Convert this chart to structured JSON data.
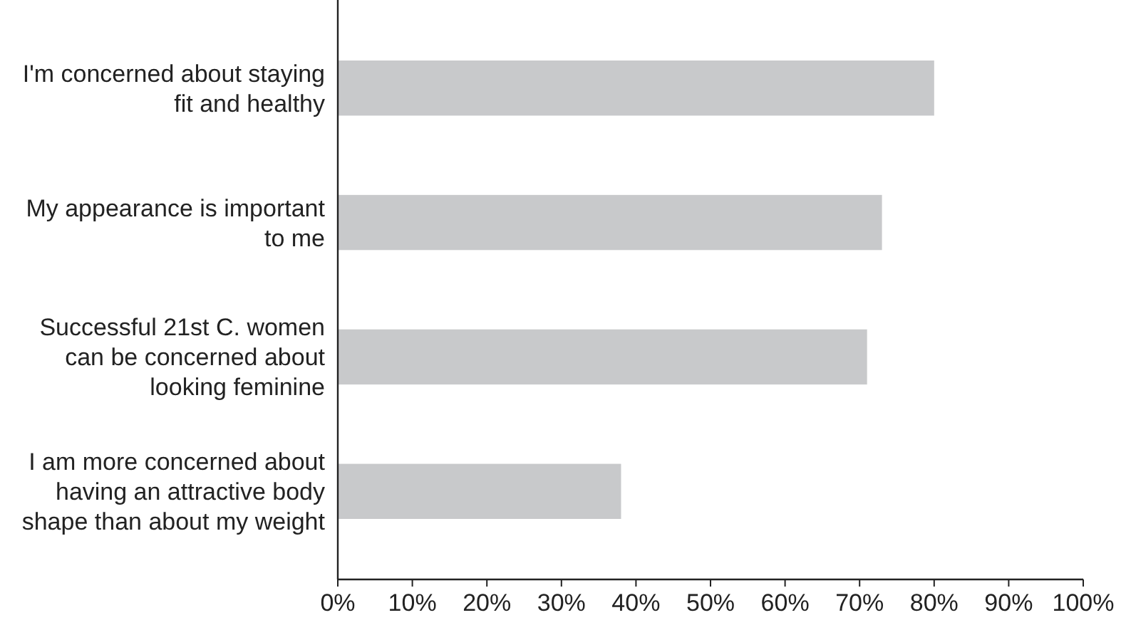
{
  "chart_data": {
    "type": "bar",
    "orientation": "horizontal",
    "categories": [
      "I'm concerned about staying fit and healthy",
      "My appearance is important to me",
      "Successful 21st C. women can be concerned about looking feminine",
      "I am more concerned about having an attractive body shape than about my weight"
    ],
    "values": [
      80,
      73,
      71,
      38
    ],
    "color": "#c8c9cb",
    "xlim": [
      0,
      100
    ],
    "xticks": [
      {
        "value": 0,
        "label": "0%"
      },
      {
        "value": 10,
        "label": "10%"
      },
      {
        "value": 20,
        "label": "20%"
      },
      {
        "value": 30,
        "label": "30%"
      },
      {
        "value": 40,
        "label": "40%"
      },
      {
        "value": 50,
        "label": "50%"
      },
      {
        "value": 60,
        "label": "60%"
      },
      {
        "value": 70,
        "label": "70%"
      },
      {
        "value": 80,
        "label": "80%"
      },
      {
        "value": 90,
        "label": "90%"
      },
      {
        "value": 100,
        "label": "100%"
      }
    ],
    "grid": false
  }
}
